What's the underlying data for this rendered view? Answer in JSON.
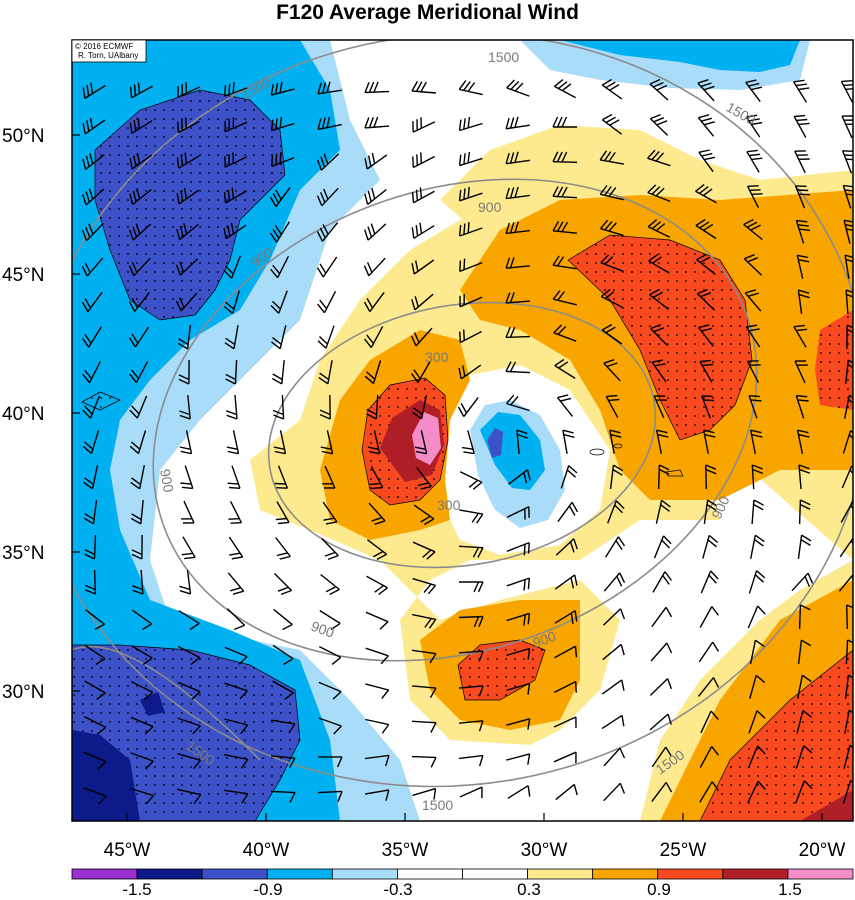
{
  "title": "F120 Average Meridional Wind",
  "copyright": [
    "© 2016 ECMWF",
    "R. Torn, UAlbany"
  ],
  "lon_ticks": [
    "45°W",
    "40°W",
    "35°W",
    "30°W",
    "25°W",
    "20°W"
  ],
  "lat_ticks": [
    "50°N",
    "45°N",
    "40°N",
    "35°N",
    "30°N"
  ],
  "contour_labels": [
    "300",
    "300",
    "900",
    "900",
    "900",
    "900",
    "900",
    "900",
    "1500",
    "1500",
    "1500",
    "1500",
    "1500"
  ],
  "colorbar": {
    "colors": [
      "#9b30d0",
      "#0c1a8a",
      "#3d52c8",
      "#00b0f0",
      "#a8dcf8",
      "#ffffff",
      "#ffffff",
      "#fde98e",
      "#f8a500",
      "#f84a1e",
      "#b01e28",
      "#f48cc8"
    ],
    "tick_labels": [
      "-1.5",
      "-0.9",
      "-0.3",
      "0.3",
      "0.9",
      "1.5"
    ]
  },
  "colors": {
    "contour": "#8c8c8c",
    "barb": "#000000"
  }
}
